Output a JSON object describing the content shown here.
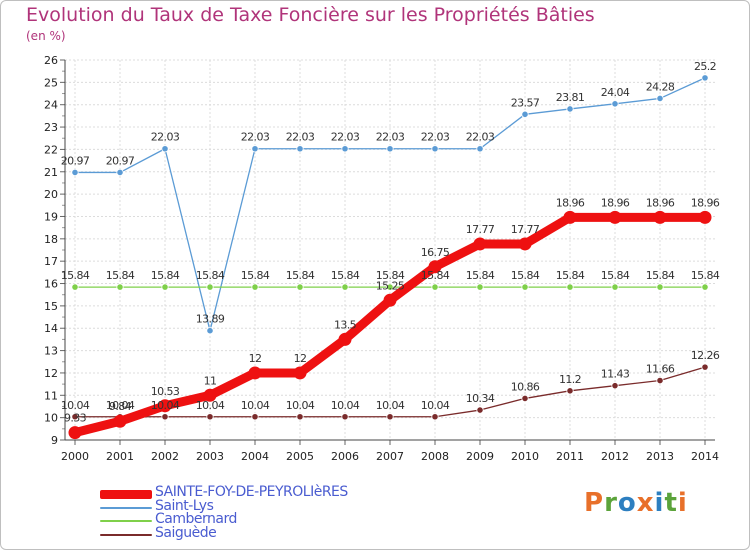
{
  "title": "Evolution du Taux de Taxe Foncière sur les Propriétés Bâties",
  "subtitle": "(en %)",
  "brand": {
    "text": "Proxiti",
    "colors": [
      "#e8702a",
      "#5ba33a",
      "#2d7fc0",
      "#e8702a",
      "#2d7fc0",
      "#5ba33a",
      "#e8702a"
    ]
  },
  "chart_data": {
    "type": "line",
    "title": "Evolution du Taux de Taxe Foncière sur les Propriétés Bâties",
    "ylabel": "(en %)",
    "xlabel": "",
    "ylim": [
      9,
      26
    ],
    "yticks": [
      9,
      10,
      11,
      12,
      13,
      14,
      15,
      16,
      17,
      18,
      19,
      20,
      21,
      22,
      23,
      24,
      25,
      26
    ],
    "grid": true,
    "categories": [
      "2000",
      "2001",
      "2002",
      "2003",
      "2004",
      "2005",
      "2006",
      "2007",
      "2008",
      "2009",
      "2010",
      "2011",
      "2012",
      "2013",
      "2014"
    ],
    "series": [
      {
        "name": "SAINTE-FOY-DE-PEYROLIèRES",
        "color": "#ee1111",
        "emphasis": true,
        "values": [
          9.33,
          9.84,
          10.53,
          11,
          12,
          12,
          13.5,
          15.25,
          16.75,
          17.77,
          17.77,
          18.96,
          18.96,
          18.96,
          18.96
        ],
        "labels": [
          "9.33",
          "9.84",
          "10.53",
          "11",
          "12",
          "12",
          "13.5",
          "15.25",
          "16.75",
          "17.77",
          "17.77",
          "18.96",
          "18.96",
          "18.96",
          "18.96"
        ]
      },
      {
        "name": "Saint-Lys",
        "color": "#5b9bd5",
        "emphasis": false,
        "values": [
          20.97,
          20.97,
          22.03,
          13.89,
          22.03,
          22.03,
          22.03,
          22.03,
          22.03,
          22.03,
          23.57,
          23.81,
          24.04,
          24.28,
          25.2
        ],
        "labels": [
          "20.97",
          "20.97",
          "22.03",
          "13.89",
          "22.03",
          "22.03",
          "22.03",
          "22.03",
          "22.03",
          "22.03",
          "23.57",
          "23.81",
          "24.04",
          "24.28",
          "25.2"
        ]
      },
      {
        "name": "Cambernard",
        "color": "#7fd04a",
        "emphasis": false,
        "values": [
          15.84,
          15.84,
          15.84,
          15.84,
          15.84,
          15.84,
          15.84,
          15.84,
          15.84,
          15.84,
          15.84,
          15.84,
          15.84,
          15.84,
          15.84
        ],
        "labels": [
          "15.84",
          "15.84",
          "15.84",
          "15.84",
          "15.84",
          "15.84",
          "15.84",
          "15.84",
          "15.84",
          "15.84",
          "15.84",
          "15.84",
          "15.84",
          "15.84",
          "15.84"
        ]
      },
      {
        "name": "Saiguède",
        "color": "#7a2b2b",
        "emphasis": false,
        "values": [
          10.04,
          10.04,
          10.04,
          10.04,
          10.04,
          10.04,
          10.04,
          10.04,
          10.04,
          10.34,
          10.86,
          11.2,
          11.43,
          11.66,
          12.26
        ],
        "labels": [
          "10.04",
          "10.04",
          "10.04",
          "10.04",
          "10.04",
          "10.04",
          "10.04",
          "10.04",
          "10.04",
          "10.34",
          "10.86",
          "11.2",
          "11.43",
          "11.66",
          "12.26"
        ]
      }
    ],
    "legend": {
      "placement": "bottom-left",
      "text_color": "#4a5cd0"
    }
  }
}
